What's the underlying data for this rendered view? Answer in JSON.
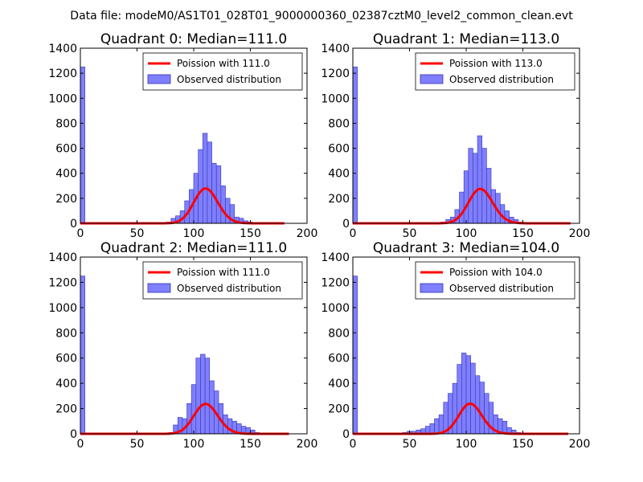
{
  "figure": {
    "suptitle": "Data file: modeM0/AS1T01_028T01_9000000360_02387cztM0_level2_common_clean.evt"
  },
  "chart_data": [
    {
      "type": "bar",
      "title": "Quadrant 0: Median=111.0",
      "xlabel": "",
      "ylabel": "",
      "xlim": [
        0,
        200
      ],
      "ylim": [
        0,
        1400
      ],
      "xticks": [
        "0",
        "50",
        "100",
        "150",
        "200"
      ],
      "yticks": [
        "0",
        "200",
        "400",
        "600",
        "800",
        "1000",
        "1200",
        "1400"
      ],
      "legend_position": "top-right",
      "colors": {
        "bars": "#7f7fff",
        "bar_edge": "#3333b3",
        "line": "#ff0000"
      },
      "median": 111.0,
      "series": [
        {
          "name": "Observed distribution",
          "kind": "histogram",
          "bins": [
            [
              0,
              4,
              1250
            ],
            [
              72,
              76,
              5
            ],
            [
              76,
              80,
              10
            ],
            [
              80,
              84,
              40
            ],
            [
              84,
              88,
              60
            ],
            [
              88,
              92,
              100
            ],
            [
              92,
              96,
              180
            ],
            [
              96,
              100,
              270
            ],
            [
              100,
              104,
              400
            ],
            [
              104,
              108,
              590
            ],
            [
              108,
              112,
              720
            ],
            [
              112,
              116,
              650
            ],
            [
              116,
              120,
              480
            ],
            [
              120,
              124,
              460
            ],
            [
              124,
              128,
              300
            ],
            [
              128,
              132,
              200
            ],
            [
              132,
              136,
              150
            ],
            [
              136,
              140,
              50
            ],
            [
              140,
              144,
              40
            ],
            [
              144,
              148,
              20
            ],
            [
              148,
              152,
              10
            ],
            [
              152,
              156,
              5
            ]
          ]
        },
        {
          "name": "Poission with 111.0",
          "kind": "line",
          "mean": 111.0,
          "scale": 7350,
          "x_range": [
            0,
            180
          ]
        }
      ]
    },
    {
      "type": "bar",
      "title": "Quadrant 1: Median=113.0",
      "xlabel": "",
      "ylabel": "",
      "xlim": [
        0,
        200
      ],
      "ylim": [
        0,
        1400
      ],
      "xticks": [
        "0",
        "50",
        "100",
        "150",
        "200"
      ],
      "yticks": [
        "0",
        "200",
        "400",
        "600",
        "800",
        "1000",
        "1200",
        "1400"
      ],
      "legend_position": "top-right",
      "colors": {
        "bars": "#7f7fff",
        "bar_edge": "#3333b3",
        "line": "#ff0000"
      },
      "median": 113.0,
      "series": [
        {
          "name": "Observed distribution",
          "kind": "histogram",
          "bins": [
            [
              0,
              4,
              1250
            ],
            [
              78,
              82,
              10
            ],
            [
              82,
              86,
              30
            ],
            [
              86,
              90,
              50
            ],
            [
              90,
              94,
              110
            ],
            [
              94,
              98,
              250
            ],
            [
              98,
              102,
              420
            ],
            [
              102,
              106,
              600
            ],
            [
              106,
              110,
              560
            ],
            [
              110,
              114,
              700
            ],
            [
              114,
              118,
              600
            ],
            [
              118,
              122,
              440
            ],
            [
              122,
              126,
              270
            ],
            [
              126,
              130,
              240
            ],
            [
              130,
              134,
              150
            ],
            [
              134,
              138,
              100
            ],
            [
              138,
              142,
              50
            ],
            [
              142,
              146,
              30
            ],
            [
              146,
              150,
              10
            ],
            [
              150,
              154,
              5
            ]
          ]
        },
        {
          "name": "Poission with 113.0",
          "kind": "line",
          "mean": 113.0,
          "scale": 7330,
          "x_range": [
            0,
            192
          ]
        }
      ]
    },
    {
      "type": "bar",
      "title": "Quadrant 2: Median=111.0",
      "xlabel": "",
      "ylabel": "",
      "xlim": [
        0,
        200
      ],
      "ylim": [
        0,
        1400
      ],
      "xticks": [
        "0",
        "50",
        "100",
        "150",
        "200"
      ],
      "yticks": [
        "0",
        "200",
        "400",
        "600",
        "800",
        "1000",
        "1200",
        "1400"
      ],
      "legend_position": "top-right",
      "colors": {
        "bars": "#7f7fff",
        "bar_edge": "#3333b3",
        "line": "#ff0000"
      },
      "median": 111.0,
      "series": [
        {
          "name": "Observed distribution",
          "kind": "histogram",
          "bins": [
            [
              0,
              4,
              1250
            ],
            [
              78,
              82,
              10
            ],
            [
              82,
              86,
              70
            ],
            [
              86,
              90,
              130
            ],
            [
              90,
              94,
              120
            ],
            [
              94,
              98,
              240
            ],
            [
              98,
              102,
              390
            ],
            [
              102,
              106,
              600
            ],
            [
              106,
              110,
              630
            ],
            [
              110,
              114,
              600
            ],
            [
              114,
              118,
              420
            ],
            [
              118,
              122,
              340
            ],
            [
              122,
              126,
              240
            ],
            [
              126,
              130,
              150
            ],
            [
              130,
              134,
              120
            ],
            [
              134,
              138,
              100
            ],
            [
              138,
              142,
              80
            ],
            [
              142,
              146,
              60
            ],
            [
              146,
              150,
              50
            ],
            [
              150,
              154,
              30
            ],
            [
              154,
              158,
              10
            ]
          ]
        },
        {
          "name": "Poission with 111.0",
          "kind": "line",
          "mean": 111.0,
          "scale": 6250,
          "x_range": [
            0,
            184
          ]
        }
      ]
    },
    {
      "type": "bar",
      "title": "Quadrant 3: Median=104.0",
      "xlabel": "",
      "ylabel": "",
      "xlim": [
        0,
        200
      ],
      "ylim": [
        0,
        1400
      ],
      "xticks": [
        "0",
        "50",
        "100",
        "150",
        "200"
      ],
      "yticks": [
        "0",
        "200",
        "400",
        "600",
        "800",
        "1000",
        "1200",
        "1400"
      ],
      "legend_position": "top-right",
      "colors": {
        "bars": "#7f7fff",
        "bar_edge": "#3333b3",
        "line": "#ff0000"
      },
      "median": 104.0,
      "series": [
        {
          "name": "Observed distribution",
          "kind": "histogram",
          "bins": [
            [
              0,
              4,
              1250
            ],
            [
              16,
              20,
              5
            ],
            [
              44,
              48,
              10
            ],
            [
              48,
              52,
              20
            ],
            [
              52,
              56,
              20
            ],
            [
              56,
              60,
              30
            ],
            [
              60,
              64,
              40
            ],
            [
              64,
              68,
              60
            ],
            [
              68,
              72,
              80
            ],
            [
              72,
              76,
              120
            ],
            [
              76,
              80,
              150
            ],
            [
              80,
              84,
              250
            ],
            [
              84,
              88,
              320
            ],
            [
              88,
              92,
              400
            ],
            [
              92,
              96,
              550
            ],
            [
              96,
              100,
              640
            ],
            [
              100,
              104,
              620
            ],
            [
              104,
              108,
              560
            ],
            [
              108,
              112,
              460
            ],
            [
              112,
              116,
              410
            ],
            [
              116,
              120,
              320
            ],
            [
              120,
              124,
              250
            ],
            [
              124,
              128,
              150
            ],
            [
              128,
              132,
              120
            ],
            [
              132,
              136,
              100
            ],
            [
              136,
              140,
              50
            ],
            [
              140,
              144,
              30
            ],
            [
              144,
              148,
              10
            ],
            [
              148,
              152,
              5
            ]
          ]
        },
        {
          "name": "Poission with 104.0",
          "kind": "line",
          "mean": 104.0,
          "scale": 6100,
          "x_range": [
            0,
            190
          ]
        }
      ]
    }
  ]
}
